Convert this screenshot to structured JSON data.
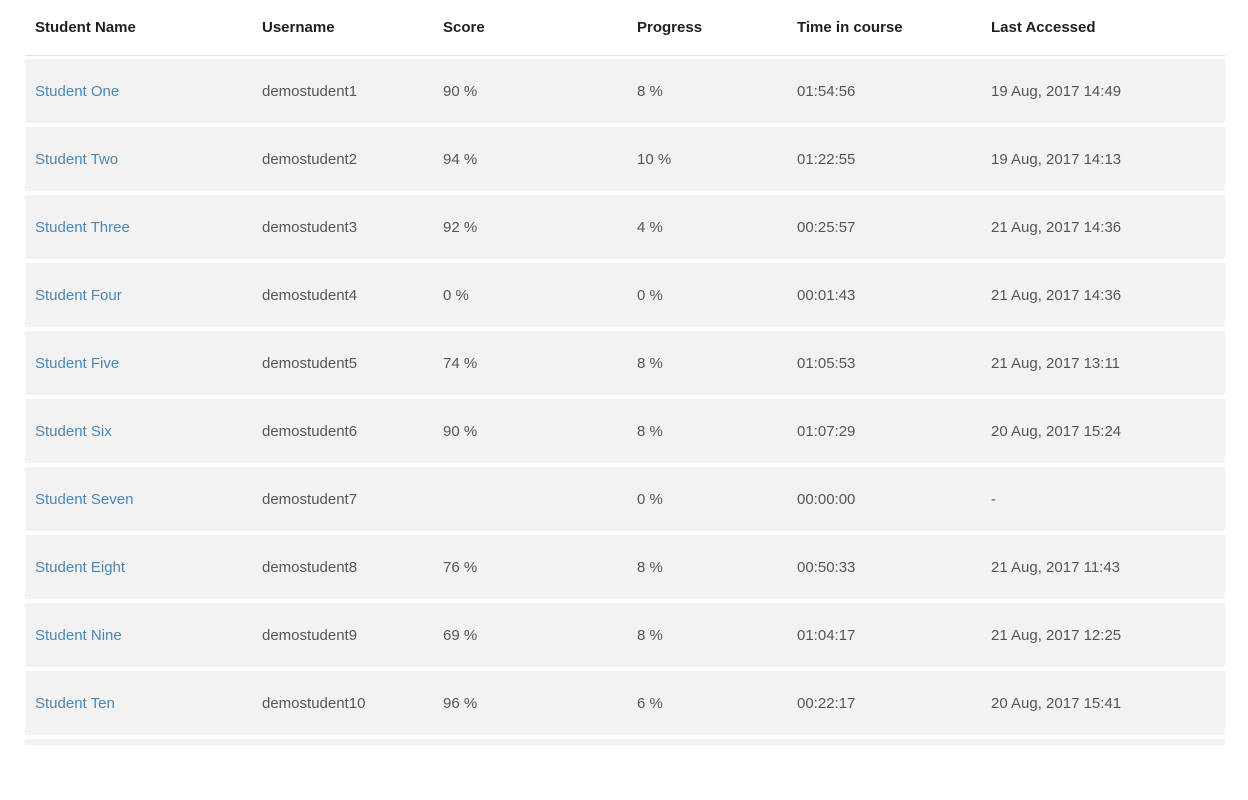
{
  "table": {
    "columns": [
      {
        "key": "name",
        "label": "Student Name"
      },
      {
        "key": "username",
        "label": "Username"
      },
      {
        "key": "score",
        "label": "Score"
      },
      {
        "key": "progress",
        "label": "Progress"
      },
      {
        "key": "time_in_course",
        "label": "Time in course"
      },
      {
        "key": "last_accessed",
        "label": "Last Accessed"
      }
    ],
    "rows": [
      {
        "name": "Student One",
        "username": "demostudent1",
        "score": "90 %",
        "progress": "8 %",
        "time_in_course": "01:54:56",
        "last_accessed": "19 Aug, 2017 14:49"
      },
      {
        "name": "Student Two",
        "username": "demostudent2",
        "score": "94 %",
        "progress": "10 %",
        "time_in_course": "01:22:55",
        "last_accessed": "19 Aug, 2017 14:13"
      },
      {
        "name": "Student Three",
        "username": "demostudent3",
        "score": "92 %",
        "progress": "4 %",
        "time_in_course": "00:25:57",
        "last_accessed": "21 Aug, 2017 14:36"
      },
      {
        "name": "Student Four",
        "username": "demostudent4",
        "score": "0 %",
        "progress": "0 %",
        "time_in_course": "00:01:43",
        "last_accessed": "21 Aug, 2017 14:36"
      },
      {
        "name": "Student Five",
        "username": "demostudent5",
        "score": "74 %",
        "progress": "8 %",
        "time_in_course": "01:05:53",
        "last_accessed": "21 Aug, 2017 13:11"
      },
      {
        "name": "Student Six",
        "username": "demostudent6",
        "score": "90 %",
        "progress": "8 %",
        "time_in_course": "01:07:29",
        "last_accessed": "20 Aug, 2017 15:24"
      },
      {
        "name": "Student Seven",
        "username": "demostudent7",
        "score": "",
        "progress": "0 %",
        "time_in_course": "00:00:00",
        "last_accessed": "-"
      },
      {
        "name": "Student Eight",
        "username": "demostudent8",
        "score": "76 %",
        "progress": "8 %",
        "time_in_course": "00:50:33",
        "last_accessed": "21 Aug, 2017 11:43"
      },
      {
        "name": "Student Nine",
        "username": "demostudent9",
        "score": "69 %",
        "progress": "8 %",
        "time_in_course": "01:04:17",
        "last_accessed": "21 Aug, 2017 12:25"
      },
      {
        "name": "Student Ten",
        "username": "demostudent10",
        "score": "96 %",
        "progress": "6 %",
        "time_in_course": "00:22:17",
        "last_accessed": "20 Aug, 2017 15:41"
      }
    ]
  },
  "colors": {
    "link": "#4a87b9",
    "row_background": "#f2f2f3",
    "header_text": "#1f1f1f",
    "cell_text": "#55565a"
  }
}
